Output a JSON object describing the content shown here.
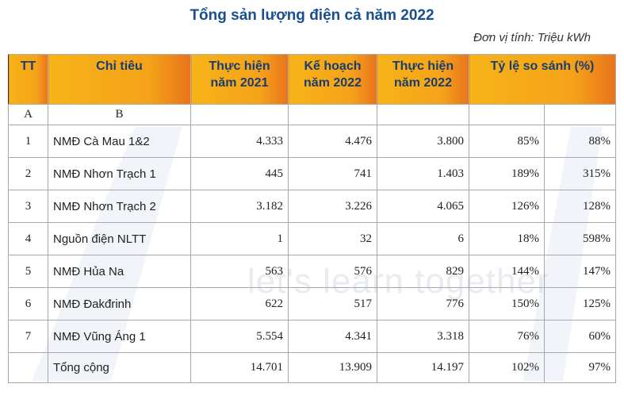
{
  "title": "Tổng sản lượng điện cả năm 2022",
  "unit_note": "Đơn vị tính: Triệu kWh",
  "watermark": "let's learn together",
  "headers": {
    "tt": "TT",
    "chi_tieu": "Chỉ tiêu",
    "th2021_line1": "Thực hiện",
    "th2021_line2": "năm 2021",
    "kh2022_line1": "Kế hoạch",
    "kh2022_line2": "năm 2022",
    "th2022_line1": "Thực hiện",
    "th2022_line2": "năm 2022",
    "ratio": "Tỷ lệ so sánh (%)"
  },
  "letter_row": {
    "a": "A",
    "b": "B"
  },
  "rows": [
    {
      "tt": "1",
      "name": "NMĐ Cà Mau 1&2",
      "th2021": "4.333",
      "kh2022": "4.476",
      "th2022": "3.800",
      "r1": "85%",
      "r2": "88%"
    },
    {
      "tt": "2",
      "name": "NMĐ Nhơn Trạch 1",
      "th2021": "445",
      "kh2022": "741",
      "th2022": "1.403",
      "r1": "189%",
      "r2": "315%"
    },
    {
      "tt": "3",
      "name": "NMĐ Nhơn Trạch 2",
      "th2021": "3.182",
      "kh2022": "3.226",
      "th2022": "4.065",
      "r1": "126%",
      "r2": "128%"
    },
    {
      "tt": "4",
      "name": "Nguồn điện NLTT",
      "th2021": "1",
      "kh2022": "32",
      "th2022": "6",
      "r1": "18%",
      "r2": "598%"
    },
    {
      "tt": "5",
      "name": "NMĐ Hủa Na",
      "th2021": "563",
      "kh2022": "576",
      "th2022": "829",
      "r1": "144%",
      "r2": "147%"
    },
    {
      "tt": "6",
      "name": "NMĐ Đakđrinh",
      "th2021": "622",
      "kh2022": "517",
      "th2022": "776",
      "r1": "150%",
      "r2": "125%"
    },
    {
      "tt": "7",
      "name": "NMĐ Vũng Áng 1",
      "th2021": "5.554",
      "kh2022": "4.341",
      "th2022": "3.318",
      "r1": "76%",
      "r2": "60%"
    }
  ],
  "total": {
    "name": "Tổng cộng",
    "th2021": "14.701",
    "kh2022": "13.909",
    "th2022": "14.197",
    "r1": "102%",
    "r2": "97%"
  }
}
